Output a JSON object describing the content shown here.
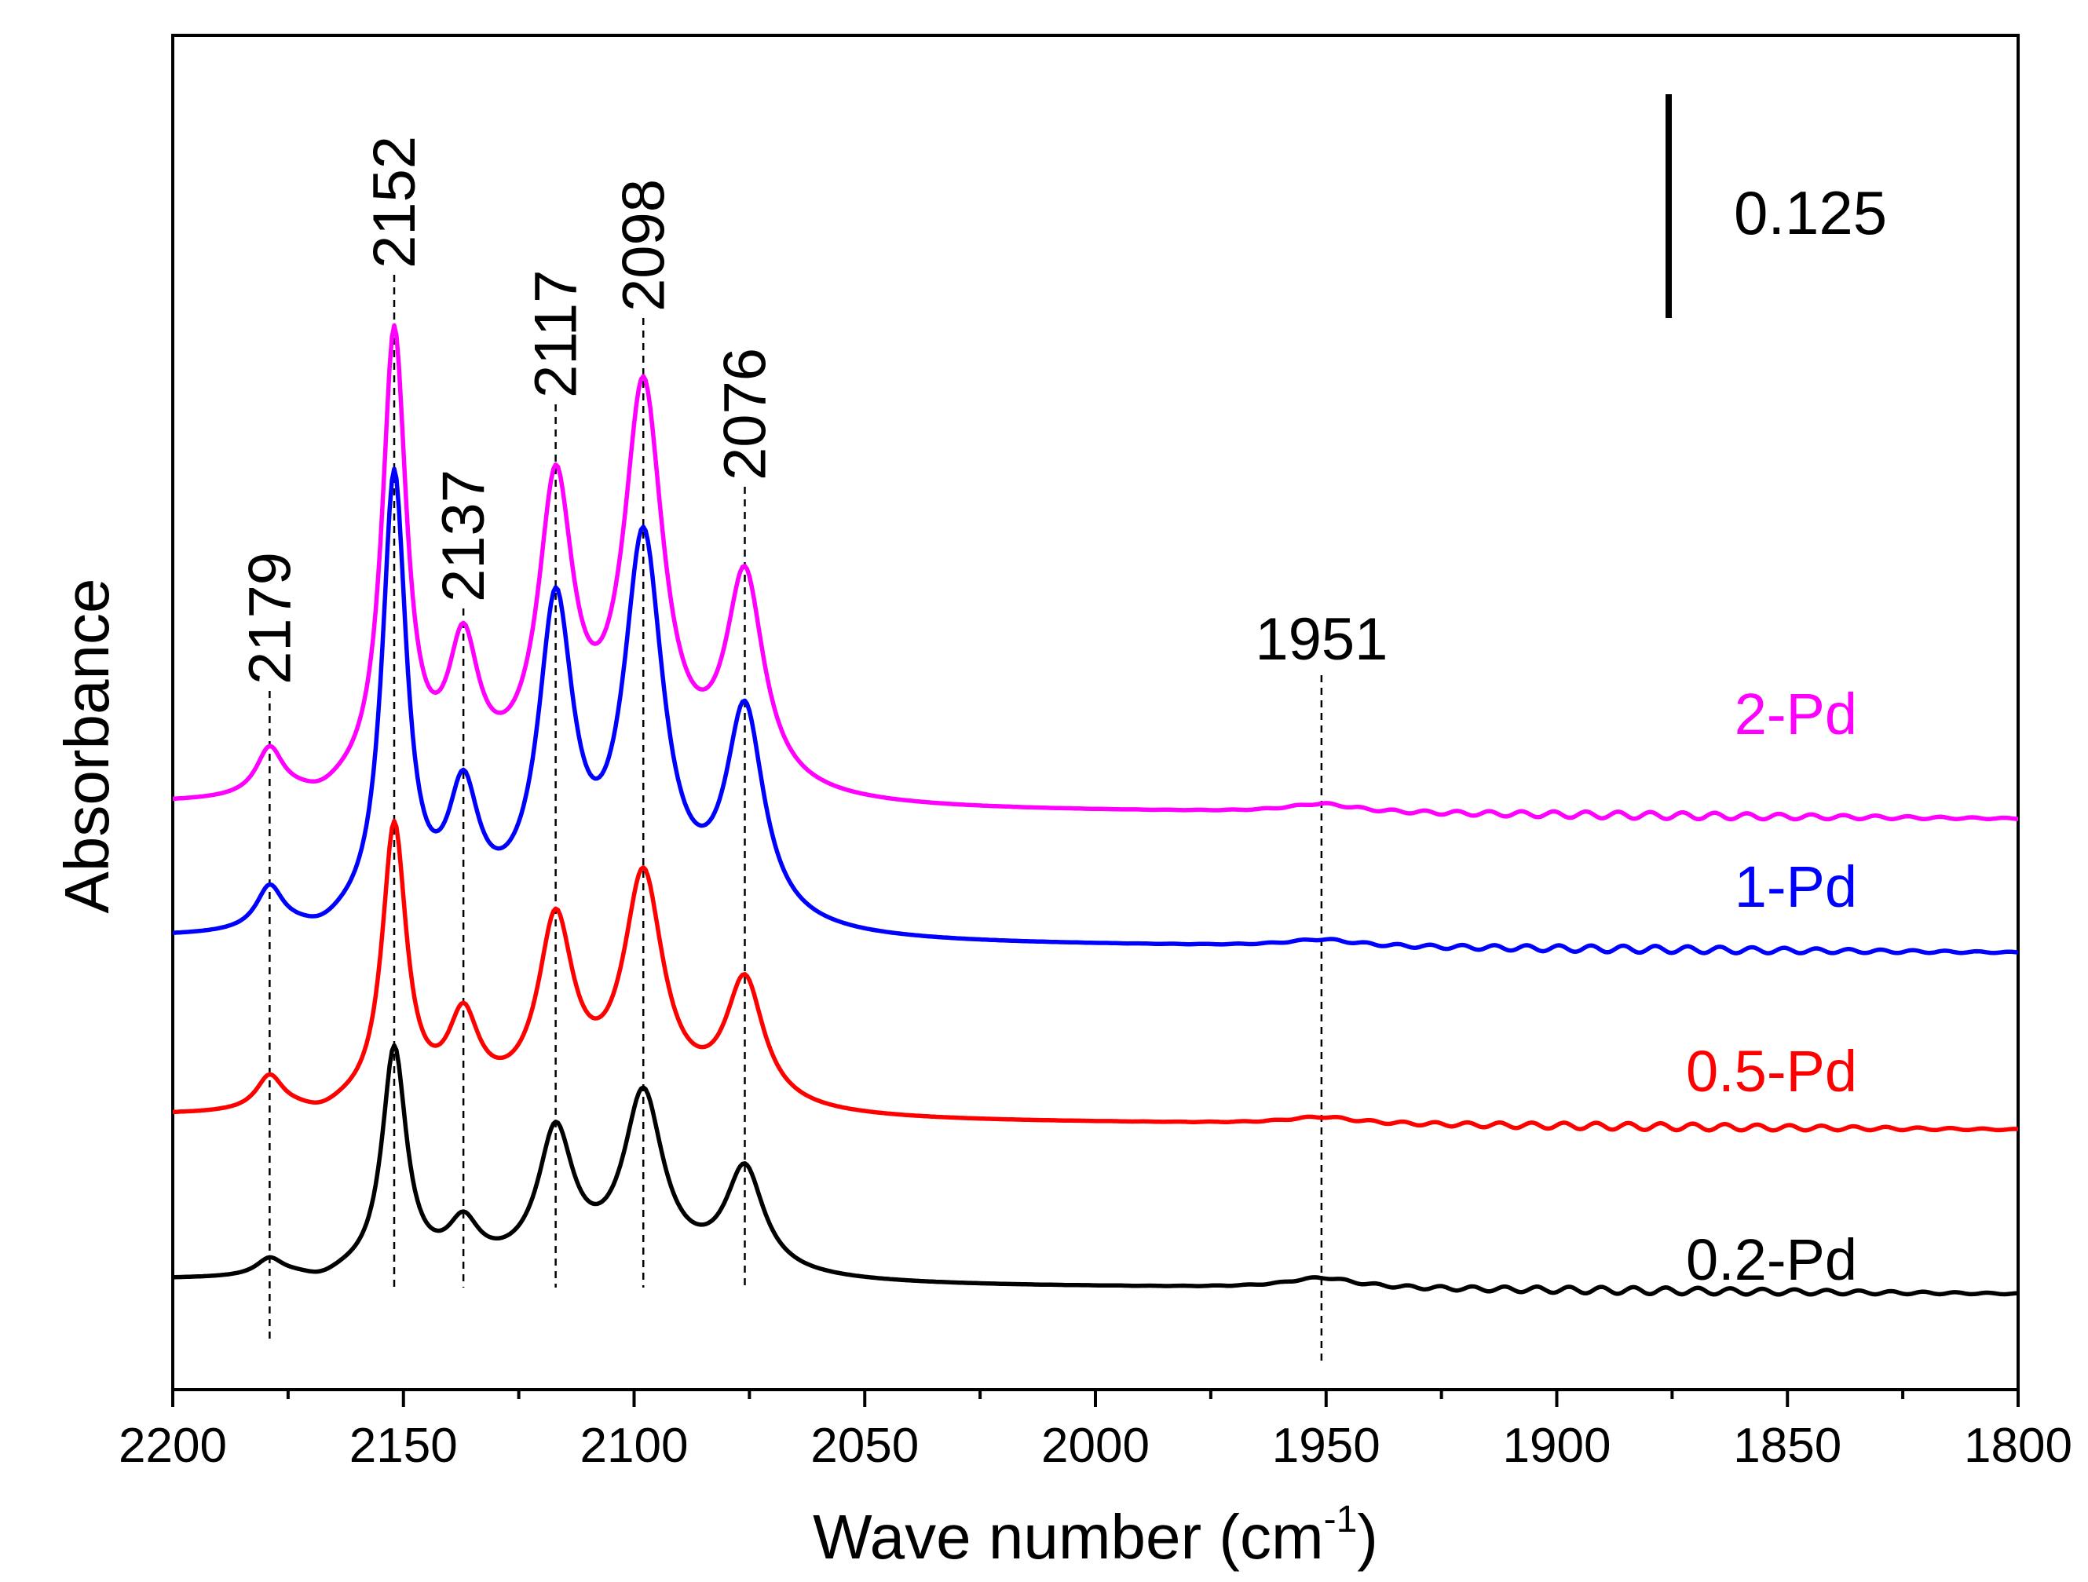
{
  "chart_data": {
    "type": "line",
    "title": "",
    "xlabel": "Wave number (cm",
    "xlabel_sup": "-1",
    "xlabel_end": ")",
    "ylabel": "Absorbance",
    "xlim": [
      2200,
      1800
    ],
    "x_reversed": true,
    "x_ticks": [
      2200,
      2150,
      2100,
      2050,
      2000,
      1950,
      1900,
      1850,
      1800
    ],
    "y_ticks_shown": false,
    "scale_bar": {
      "label": "0.125",
      "value": 0.125
    },
    "peaks": [
      {
        "label": "2179",
        "x": 2179
      },
      {
        "label": "2152",
        "x": 2152
      },
      {
        "label": "2137",
        "x": 2137
      },
      {
        "label": "2117",
        "x": 2117
      },
      {
        "label": "2098",
        "x": 2098
      },
      {
        "label": "2076",
        "x": 2076
      },
      {
        "label": "1951",
        "x": 1951
      }
    ],
    "series": [
      {
        "name": "2-Pd",
        "color": "#ff00ff",
        "baseline": 0.62,
        "peak_heights": {
          "2179": 0.055,
          "2152": 0.53,
          "2137": 0.155,
          "2117": 0.34,
          "2098": 0.455,
          "2076": 0.245,
          "1951": 0.01
        }
      },
      {
        "name": "1-Pd",
        "color": "#0000ff",
        "baseline": 0.465,
        "peak_heights": {
          "2179": 0.05,
          "2152": 0.52,
          "2137": 0.14,
          "2117": 0.355,
          "2098": 0.435,
          "2076": 0.245,
          "1951": 0.008
        }
      },
      {
        "name": "0.5-Pd",
        "color": "#ff0000",
        "baseline": 0.26,
        "peak_heights": {
          "2179": 0.04,
          "2152": 0.325,
          "2137": 0.095,
          "2117": 0.205,
          "2098": 0.26,
          "2076": 0.145,
          "1951": 0.008
        }
      },
      {
        "name": "0.2-Pd",
        "color": "#000000",
        "baseline": 0.07,
        "peak_heights": {
          "2179": 0.02,
          "2152": 0.26,
          "2137": 0.05,
          "2117": 0.155,
          "2098": 0.2,
          "2076": 0.12,
          "1951": 0.012
        }
      }
    ]
  }
}
